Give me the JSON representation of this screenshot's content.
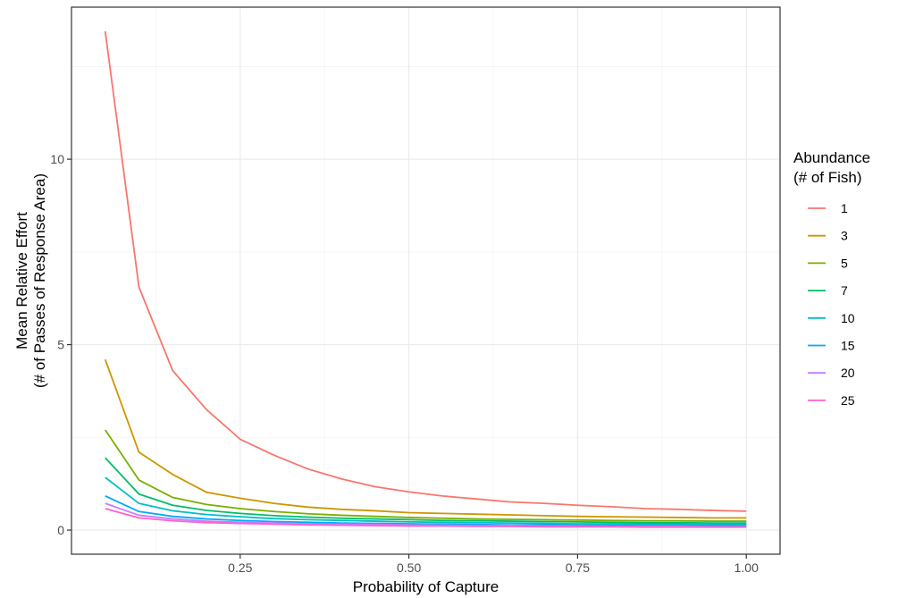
{
  "chart_data": {
    "type": "line",
    "xlabel": "Probability of Capture",
    "ylabel": [
      "Mean Relative Effort",
      "(# of Passes of Response Area)"
    ],
    "xlim": [
      0.0,
      1.05
    ],
    "ylim": [
      -0.65,
      14.1
    ],
    "x_ticks": [
      0.25,
      0.5,
      0.75,
      1.0
    ],
    "x_tick_labels": [
      "0.25",
      "0.50",
      "0.75",
      "1.00"
    ],
    "y_ticks": [
      0,
      5,
      10
    ],
    "y_tick_labels": [
      "0",
      "5",
      "10"
    ],
    "grid": true,
    "legend_position": "right",
    "legend_title": [
      "Abundance",
      "(# of Fish)"
    ],
    "x": [
      0.05,
      0.1,
      0.15,
      0.2,
      0.25,
      0.3,
      0.35,
      0.4,
      0.45,
      0.5,
      0.55,
      0.6,
      0.65,
      0.7,
      0.75,
      0.8,
      0.85,
      0.9,
      0.95,
      1.0
    ],
    "series": [
      {
        "name": "1",
        "color": "#F8766D",
        "values": [
          13.45,
          6.55,
          4.3,
          3.25,
          2.45,
          2.02,
          1.65,
          1.38,
          1.17,
          1.03,
          0.92,
          0.84,
          0.76,
          0.72,
          0.67,
          0.63,
          0.58,
          0.56,
          0.53,
          0.51
        ]
      },
      {
        "name": "3",
        "color": "#CD9600",
        "values": [
          4.6,
          2.1,
          1.5,
          1.02,
          0.86,
          0.72,
          0.62,
          0.56,
          0.52,
          0.47,
          0.45,
          0.43,
          0.41,
          0.39,
          0.37,
          0.36,
          0.35,
          0.34,
          0.33,
          0.33
        ]
      },
      {
        "name": "5",
        "color": "#7CAE00",
        "values": [
          2.7,
          1.35,
          0.88,
          0.69,
          0.58,
          0.5,
          0.44,
          0.4,
          0.37,
          0.34,
          0.32,
          0.3,
          0.29,
          0.28,
          0.27,
          0.26,
          0.25,
          0.25,
          0.24,
          0.24
        ]
      },
      {
        "name": "7",
        "color": "#00BE67",
        "values": [
          1.95,
          0.97,
          0.67,
          0.53,
          0.45,
          0.39,
          0.35,
          0.32,
          0.3,
          0.28,
          0.26,
          0.25,
          0.24,
          0.23,
          0.22,
          0.21,
          0.2,
          0.2,
          0.19,
          0.19
        ]
      },
      {
        "name": "10",
        "color": "#00BFC4",
        "values": [
          1.42,
          0.72,
          0.52,
          0.42,
          0.36,
          0.31,
          0.28,
          0.26,
          0.24,
          0.22,
          0.21,
          0.2,
          0.19,
          0.18,
          0.17,
          0.17,
          0.16,
          0.16,
          0.15,
          0.15
        ]
      },
      {
        "name": "15",
        "color": "#00A9FF",
        "values": [
          0.92,
          0.5,
          0.37,
          0.3,
          0.26,
          0.23,
          0.21,
          0.19,
          0.18,
          0.17,
          0.16,
          0.15,
          0.14,
          0.14,
          0.13,
          0.13,
          0.12,
          0.12,
          0.12,
          0.11
        ]
      },
      {
        "name": "20",
        "color": "#C77CFF",
        "values": [
          0.72,
          0.4,
          0.3,
          0.24,
          0.21,
          0.19,
          0.17,
          0.16,
          0.15,
          0.14,
          0.13,
          0.12,
          0.12,
          0.11,
          0.11,
          0.1,
          0.1,
          0.1,
          0.09,
          0.09
        ]
      },
      {
        "name": "25",
        "color": "#FF61CC",
        "values": [
          0.58,
          0.33,
          0.25,
          0.2,
          0.18,
          0.16,
          0.14,
          0.13,
          0.12,
          0.11,
          0.11,
          0.1,
          0.1,
          0.09,
          0.09,
          0.09,
          0.08,
          0.08,
          0.08,
          0.08
        ]
      }
    ]
  },
  "colors": {
    "panel_border": "#333333",
    "grid_major": "#ebebeb",
    "grid_minor": "#f5f5f5",
    "tick_mark": "#333333"
  }
}
